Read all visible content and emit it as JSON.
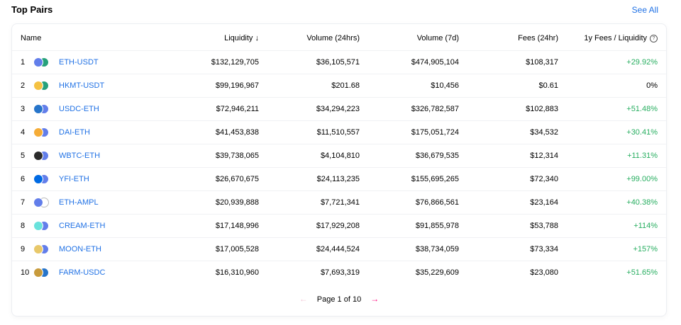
{
  "section_title": "Top Pairs",
  "see_all": "See All",
  "columns": {
    "name": "Name",
    "liquidity": "Liquidity",
    "sort_arrow": "↓",
    "volume_24h": "Volume (24hrs)",
    "volume_7d": "Volume (7d)",
    "fees_24h": "Fees (24hr)",
    "fees_liquidity": "1y Fees / Liquidity",
    "help_icon": "?"
  },
  "rows": [
    {
      "rank": "1",
      "pair": "ETH-USDT",
      "liquidity": "$132,129,705",
      "volume_24h": "$36,105,571",
      "volume_7d": "$474,905,104",
      "fees_24h": "$108,317",
      "fees_liquidity": "+29.92%",
      "token_a": "eth-icon",
      "token_b": "usdt-icon",
      "color_a": "#627eea",
      "color_b": "#26a17b"
    },
    {
      "rank": "2",
      "pair": "HKMT-USDT",
      "liquidity": "$99,196,967",
      "volume_24h": "$201.68",
      "volume_7d": "$10,456",
      "fees_24h": "$0.61",
      "fees_liquidity": "0%",
      "token_a": "hkmt-icon",
      "token_b": "usdt-icon",
      "color_a": "#f5c242",
      "color_b": "#26a17b"
    },
    {
      "rank": "3",
      "pair": "USDC-ETH",
      "liquidity": "$72,946,211",
      "volume_24h": "$34,294,223",
      "volume_7d": "$326,782,587",
      "fees_24h": "$102,883",
      "fees_liquidity": "+51.48%",
      "token_a": "usdc-icon",
      "token_b": "eth-icon",
      "color_a": "#2775ca",
      "color_b": "#627eea"
    },
    {
      "rank": "4",
      "pair": "DAI-ETH",
      "liquidity": "$41,453,838",
      "volume_24h": "$11,510,557",
      "volume_7d": "$175,051,724",
      "fees_24h": "$34,532",
      "fees_liquidity": "+30.41%",
      "token_a": "dai-icon",
      "token_b": "eth-icon",
      "color_a": "#f5ac37",
      "color_b": "#627eea"
    },
    {
      "rank": "5",
      "pair": "WBTC-ETH",
      "liquidity": "$39,738,065",
      "volume_24h": "$4,104,810",
      "volume_7d": "$36,679,535",
      "fees_24h": "$12,314",
      "fees_liquidity": "+11.31%",
      "token_a": "wbtc-icon",
      "token_b": "eth-icon",
      "color_a": "#2b2b2b",
      "color_b": "#627eea"
    },
    {
      "rank": "6",
      "pair": "YFI-ETH",
      "liquidity": "$26,670,675",
      "volume_24h": "$24,113,235",
      "volume_7d": "$155,695,265",
      "fees_24h": "$72,340",
      "fees_liquidity": "+99.00%",
      "token_a": "yfi-icon",
      "token_b": "eth-icon",
      "color_a": "#006ae3",
      "color_b": "#627eea"
    },
    {
      "rank": "7",
      "pair": "ETH-AMPL",
      "liquidity": "$20,939,888",
      "volume_24h": "$7,721,341",
      "volume_7d": "$76,866,561",
      "fees_24h": "$23,164",
      "fees_liquidity": "+40.38%",
      "token_a": "eth-icon",
      "token_b": "ampl-icon",
      "color_a": "#627eea",
      "color_b": "#ffffff"
    },
    {
      "rank": "8",
      "pair": "CREAM-ETH",
      "liquidity": "$17,148,996",
      "volume_24h": "$17,929,208",
      "volume_7d": "$91,855,978",
      "fees_24h": "$53,788",
      "fees_liquidity": "+114%",
      "token_a": "cream-icon",
      "token_b": "eth-icon",
      "color_a": "#69e2dc",
      "color_b": "#627eea"
    },
    {
      "rank": "9",
      "pair": "MOON-ETH",
      "liquidity": "$17,005,528",
      "volume_24h": "$24,444,524",
      "volume_7d": "$38,734,059",
      "fees_24h": "$73,334",
      "fees_liquidity": "+157%",
      "token_a": "moon-icon",
      "token_b": "eth-icon",
      "color_a": "#e8c86a",
      "color_b": "#627eea"
    },
    {
      "rank": "10",
      "pair": "FARM-USDC",
      "liquidity": "$16,310,960",
      "volume_24h": "$7,693,319",
      "volume_7d": "$35,229,609",
      "fees_24h": "$23,080",
      "fees_liquidity": "+51.65%",
      "token_a": "farm-icon",
      "token_b": "usdc-icon",
      "color_a": "#c89b3c",
      "color_b": "#2775ca"
    }
  ],
  "pagination": {
    "prev": "←",
    "text": "Page 1 of 10",
    "next": "→"
  },
  "colors": {
    "accent": "#2172e5",
    "positive": "#27ae60",
    "pager_next": "#ff007a"
  }
}
